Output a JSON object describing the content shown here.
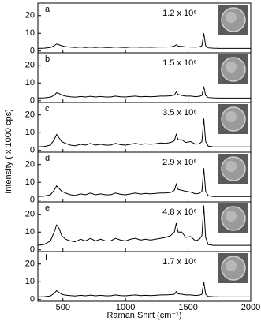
{
  "chart_data": {
    "type": "line",
    "xlabel": "Raman Shift (cm⁻¹)",
    "ylabel": "Intensity ( x 1000 cps)",
    "xlim": [
      300,
      2000
    ],
    "xticks": [
      500,
      1000,
      1500,
      2000
    ],
    "ylim": [
      -1,
      27
    ],
    "yticks": [
      0,
      10,
      20
    ],
    "x": [
      300,
      350,
      400,
      430,
      450,
      470,
      490,
      520,
      560,
      600,
      640,
      680,
      720,
      760,
      800,
      840,
      880,
      920,
      960,
      1000,
      1040,
      1080,
      1120,
      1160,
      1200,
      1240,
      1280,
      1320,
      1360,
      1390,
      1405,
      1420,
      1450,
      1480,
      1520,
      1560,
      1590,
      1610,
      1625,
      1640,
      1660,
      1700,
      1750,
      1800,
      1850,
      1900,
      1950,
      2000
    ],
    "series": [
      {
        "name": "a",
        "annotation": "1.2 x 10⁶",
        "color": "#000000",
        "values": [
          1.5,
          1.6,
          2,
          3,
          4,
          3.5,
          3,
          2.5,
          2.2,
          2,
          2.3,
          2,
          2.2,
          2,
          2.2,
          2,
          2,
          2.3,
          2.1,
          2,
          2.2,
          2.3,
          2.1,
          2.2,
          2.1,
          2.2,
          2.3,
          2.3,
          2.4,
          2.8,
          3.5,
          2.8,
          2.6,
          2.4,
          2.3,
          2.2,
          2.4,
          3,
          10,
          3,
          1.8,
          1.6,
          1.5,
          1.5,
          1.5,
          1.5,
          1.5,
          1.5
        ]
      },
      {
        "name": "b",
        "annotation": "1.5 x 10⁶",
        "color": "#000000",
        "values": [
          1.5,
          1.6,
          2,
          3,
          4.5,
          4,
          3.2,
          2.6,
          2.2,
          2,
          2.4,
          2.1,
          2.5,
          2.1,
          2.4,
          2.1,
          2.1,
          2.6,
          2.2,
          2.1,
          2.4,
          2.6,
          2.2,
          2.4,
          2.2,
          2.4,
          2.6,
          2.6,
          2.8,
          3.2,
          5,
          3.5,
          3,
          2.6,
          2.6,
          2.3,
          2.5,
          3,
          8,
          3,
          1.8,
          1.6,
          1.5,
          1.5,
          1.5,
          1.5,
          1.5,
          1.5
        ]
      },
      {
        "name": "c",
        "annotation": "3.5 x 10⁶",
        "color": "#000000",
        "values": [
          2,
          2.2,
          3,
          6,
          9,
          7,
          5,
          4,
          3,
          2.6,
          3.5,
          3,
          4,
          3,
          3.5,
          3,
          3,
          4,
          3.3,
          3,
          3.5,
          4,
          3.4,
          3.8,
          3.5,
          3.8,
          4.2,
          4,
          4.5,
          5.5,
          9,
          6,
          6,
          4.5,
          5,
          3.5,
          3.8,
          5,
          18,
          5,
          2.5,
          2,
          2,
          2,
          2,
          2,
          2,
          2
        ]
      },
      {
        "name": "d",
        "annotation": "2.9 x 10⁶",
        "color": "#000000",
        "values": [
          2,
          2.2,
          3,
          5.5,
          8,
          6.5,
          5,
          4,
          3,
          2.6,
          3.5,
          3,
          4,
          3,
          3.5,
          3,
          3,
          4,
          3.3,
          3,
          3.5,
          4,
          3.4,
          3.8,
          3.5,
          3.8,
          4,
          4,
          4.3,
          5.5,
          9,
          6,
          5.5,
          5,
          4.5,
          3.5,
          3.8,
          5,
          18,
          5,
          2.5,
          2,
          2,
          2,
          2,
          2,
          2,
          2
        ]
      },
      {
        "name": "e",
        "annotation": "4.8 x 10⁶",
        "color": "#000000",
        "values": [
          2.5,
          3,
          5,
          10,
          14,
          12,
          8,
          6,
          5,
          4.5,
          6,
          5,
          6.5,
          5,
          6,
          5,
          5,
          6.5,
          5.5,
          5,
          6,
          6.5,
          5.5,
          6,
          5.5,
          6,
          6.5,
          7,
          8,
          10,
          15,
          10,
          10,
          7,
          7.5,
          5,
          6,
          8,
          25,
          7,
          3,
          2.5,
          2.5,
          2.5,
          2.5,
          2.5,
          2.5,
          2.5
        ]
      },
      {
        "name": "f",
        "annotation": "1.7 x 10⁶",
        "color": "#000000",
        "values": [
          1.5,
          1.6,
          2,
          3.5,
          5,
          4,
          3,
          2.5,
          2.2,
          2,
          2.4,
          2.1,
          2.5,
          2.1,
          2.4,
          2.1,
          2.1,
          2.6,
          2.2,
          2.1,
          2.4,
          2.6,
          2.2,
          2.4,
          2.2,
          2.4,
          2.6,
          2.6,
          2.8,
          3,
          4.5,
          3.2,
          3,
          2.6,
          2.6,
          2.3,
          2.5,
          3,
          10,
          3,
          1.8,
          1.6,
          1.5,
          1.5,
          1.5,
          1.5,
          1.5,
          1.5
        ]
      }
    ]
  }
}
